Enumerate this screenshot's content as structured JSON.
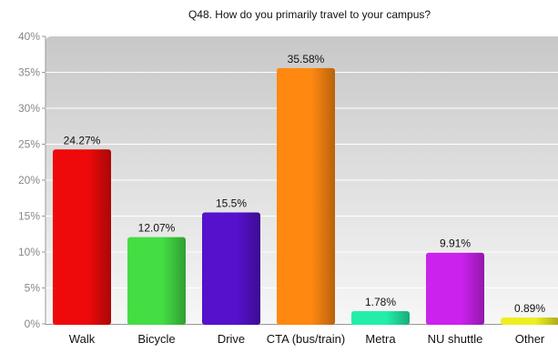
{
  "chart_data": {
    "type": "bar",
    "title": "Q48. How do you primarily travel to your campus?",
    "xlabel": "",
    "ylabel": "",
    "ylim": [
      0,
      40
    ],
    "yticks": [
      0,
      5,
      10,
      15,
      20,
      25,
      30,
      35,
      40
    ],
    "ytick_labels": [
      "0%",
      "5%",
      "10%",
      "15%",
      "20%",
      "25%",
      "30%",
      "35%",
      "40%"
    ],
    "categories": [
      "Walk",
      "Bicycle",
      "Drive",
      "CTA (bus/train)",
      "Metra",
      "NU shuttle",
      "Other"
    ],
    "values": [
      24.27,
      12.07,
      15.5,
      35.58,
      1.78,
      9.91,
      0.89
    ],
    "value_labels": [
      "24.27%",
      "12.07%",
      "15.5%",
      "35.58%",
      "1.78%",
      "9.91%",
      "0.89%"
    ],
    "colors": [
      "#ee0a0a",
      "#44dd44",
      "#5511cc",
      "#ff8811",
      "#22eeaa",
      "#cc22ee",
      "#eeee22"
    ],
    "grid": true,
    "legend": "none"
  }
}
